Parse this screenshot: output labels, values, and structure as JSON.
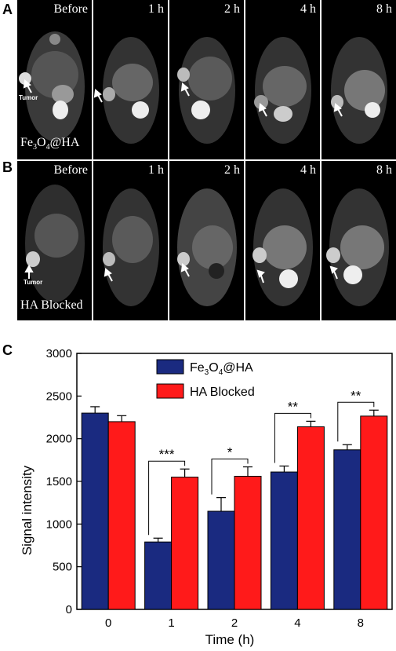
{
  "panels": {
    "a_label": "A",
    "b_label": "B",
    "c_label": "C"
  },
  "row_a": {
    "label_main": "Fe",
    "label_sub": "3",
    "label_mid": "O",
    "label_sub2": "4",
    "label_end": "@HA",
    "tumor_label": "Tumor",
    "timepoints": [
      "Before",
      "1 h",
      "2 h",
      "4 h",
      "8 h"
    ]
  },
  "row_b": {
    "label": "HA Blocked",
    "tumor_label": "Tumor",
    "timepoints": [
      "Before",
      "1 h",
      "2 h",
      "4 h",
      "8 h"
    ]
  },
  "chart_data": {
    "type": "bar",
    "xlabel": "Time (h)",
    "ylabel": "Signal intensity",
    "ylim": [
      0,
      3000
    ],
    "yticks": [
      0,
      500,
      1000,
      1500,
      2000,
      2500,
      3000
    ],
    "categories": [
      "0",
      "1",
      "2",
      "4",
      "8"
    ],
    "series": [
      {
        "name": "Fe3O4@HA",
        "name_parts": [
          "Fe",
          "3",
          "O",
          "4",
          "@HA"
        ],
        "color": "#1a2a80",
        "values": [
          2300,
          790,
          1150,
          1610,
          1870
        ],
        "errors": [
          75,
          45,
          160,
          70,
          60
        ]
      },
      {
        "name": "HA Blocked",
        "color": "#ff1a1a",
        "values": [
          2200,
          1550,
          1560,
          2140,
          2265
        ],
        "errors": [
          70,
          95,
          110,
          65,
          70
        ]
      }
    ],
    "significance": [
      {
        "category": "1",
        "label": "***"
      },
      {
        "category": "2",
        "label": "*"
      },
      {
        "category": "4",
        "label": "**"
      },
      {
        "category": "8",
        "label": "**"
      }
    ],
    "legend_position": "top-center",
    "grid": false
  }
}
